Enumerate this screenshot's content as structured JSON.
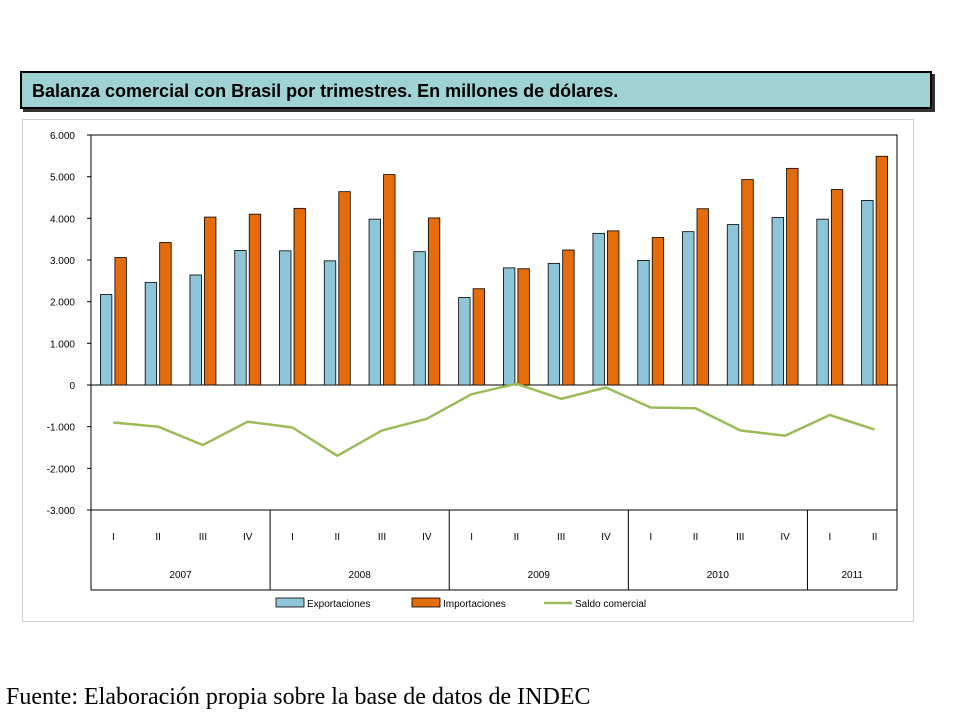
{
  "title": "Balanza comercial con Brasil por trimestres. En millones de dólares.",
  "source": "Fuente: Elaboración propia sobre la base de datos de INDEC",
  "chart_data": {
    "type": "bar",
    "title": "Balanza comercial con Brasil por trimestres. En millones de dólares.",
    "ylim": [
      -3000,
      6000
    ],
    "yticks": [
      6000,
      5000,
      4000,
      3000,
      2000,
      1000,
      0,
      -1000,
      -2000,
      -3000
    ],
    "ytick_labels": [
      "6.000",
      "5.000",
      "4.000",
      "3.000",
      "2.000",
      "1.000",
      "0",
      "-1.000",
      "-2.000",
      "-3.000"
    ],
    "grid": false,
    "legend_position": "bottom",
    "categories": [
      "I",
      "II",
      "III",
      "IV",
      "I",
      "II",
      "III",
      "IV",
      "I",
      "II",
      "III",
      "IV",
      "I",
      "II",
      "III",
      "IV",
      "I",
      "II"
    ],
    "groups": [
      {
        "label": "2007",
        "count": 4
      },
      {
        "label": "2008",
        "count": 4
      },
      {
        "label": "2009",
        "count": 4
      },
      {
        "label": "2010",
        "count": 4
      },
      {
        "label": "2011",
        "count": 2
      }
    ],
    "series": [
      {
        "name": "Exportaciones",
        "kind": "bar",
        "color": "#8ec5d9",
        "values": [
          2170,
          2460,
          2640,
          3230,
          3220,
          2980,
          3980,
          3200,
          2100,
          2810,
          2920,
          3640,
          2990,
          3680,
          3850,
          4020,
          3980,
          4430
        ]
      },
      {
        "name": "Importaciones",
        "kind": "bar",
        "color": "#e46c0a",
        "values": [
          3060,
          3420,
          4030,
          4100,
          4240,
          4640,
          5050,
          4010,
          2310,
          2790,
          3240,
          3700,
          3540,
          4230,
          4930,
          5200,
          4690,
          5490
        ]
      },
      {
        "name": "Saldo comercial",
        "kind": "line",
        "color": "#9bbb59",
        "values": [
          -900,
          -1000,
          -1440,
          -880,
          -1020,
          -1700,
          -1090,
          -810,
          -220,
          30,
          -330,
          -60,
          -540,
          -560,
          -1090,
          -1220,
          -720,
          -1070
        ]
      }
    ]
  }
}
